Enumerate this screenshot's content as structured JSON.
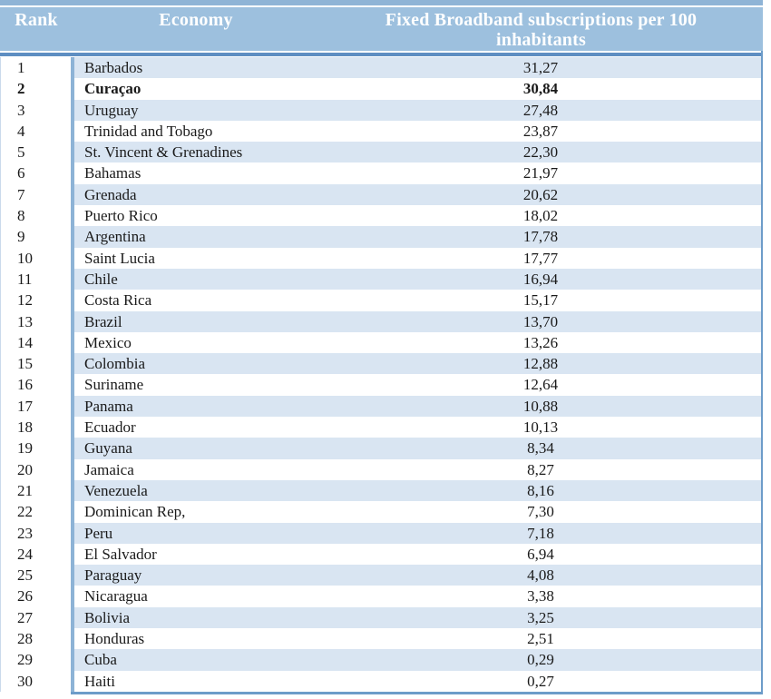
{
  "table": {
    "headers": {
      "rank": "Rank",
      "economy": "Economy",
      "value": "Fixed Broadband subscriptions per 100 inhabitants",
      "value_line1": "Fixed Broadband subscriptions per 100",
      "value_line2": "inhabitants"
    },
    "rows": [
      {
        "rank": "1",
        "economy": "Barbados",
        "value": "31,27",
        "bold": false
      },
      {
        "rank": "2",
        "economy": "Curaçao",
        "value": "30,84",
        "bold": true
      },
      {
        "rank": "3",
        "economy": "Uruguay",
        "value": "27,48",
        "bold": false
      },
      {
        "rank": "4",
        "economy": "Trinidad and Tobago",
        "value": "23,87",
        "bold": false
      },
      {
        "rank": "5",
        "economy": "St. Vincent & Grenadines",
        "value": "22,30",
        "bold": false
      },
      {
        "rank": "6",
        "economy": "Bahamas",
        "value": "21,97",
        "bold": false
      },
      {
        "rank": "7",
        "economy": "Grenada",
        "value": "20,62",
        "bold": false
      },
      {
        "rank": "8",
        "economy": "Puerto Rico",
        "value": "18,02",
        "bold": false
      },
      {
        "rank": "9",
        "economy": "Argentina",
        "value": "17,78",
        "bold": false
      },
      {
        "rank": "10",
        "economy": "Saint Lucia",
        "value": "17,77",
        "bold": false
      },
      {
        "rank": "11",
        "economy": "Chile",
        "value": "16,94",
        "bold": false
      },
      {
        "rank": "12",
        "economy": "Costa Rica",
        "value": "15,17",
        "bold": false
      },
      {
        "rank": "13",
        "economy": "Brazil",
        "value": "13,70",
        "bold": false
      },
      {
        "rank": "14",
        "economy": "Mexico",
        "value": "13,26",
        "bold": false
      },
      {
        "rank": "15",
        "economy": "Colombia",
        "value": "12,88",
        "bold": false
      },
      {
        "rank": "16",
        "economy": "Suriname",
        "value": "12,64",
        "bold": false
      },
      {
        "rank": "17",
        "economy": "Panama",
        "value": "10,88",
        "bold": false
      },
      {
        "rank": "18",
        "economy": "Ecuador",
        "value": "10,13",
        "bold": false
      },
      {
        "rank": "19",
        "economy": "Guyana",
        "value": "8,34",
        "bold": false
      },
      {
        "rank": "20",
        "economy": "Jamaica",
        "value": "8,27",
        "bold": false
      },
      {
        "rank": "21",
        "economy": "Venezuela",
        "value": "8,16",
        "bold": false
      },
      {
        "rank": "22",
        "economy": "Dominican Rep,",
        "value": "7,30",
        "bold": false
      },
      {
        "rank": "23",
        "economy": "Peru",
        "value": "7,18",
        "bold": false
      },
      {
        "rank": "24",
        "economy": "El Salvador",
        "value": "6,94",
        "bold": false
      },
      {
        "rank": "25",
        "economy": "Paraguay",
        "value": "4,08",
        "bold": false
      },
      {
        "rank": "26",
        "economy": "Nicaragua",
        "value": "3,38",
        "bold": false
      },
      {
        "rank": "27",
        "economy": "Bolivia",
        "value": "3,25",
        "bold": false
      },
      {
        "rank": "28",
        "economy": "Honduras",
        "value": "2,51",
        "bold": false
      },
      {
        "rank": "29",
        "economy": "Cuba",
        "value": "0,29",
        "bold": false
      },
      {
        "rank": "30",
        "economy": "Haiti",
        "value": "0,27",
        "bold": false
      }
    ]
  },
  "colors": {
    "top_strip": "#8FB4D6",
    "header_bg": "#9DC0DE",
    "header_text": "#FFFFFF",
    "header_underline": "#5E8EC2",
    "row_stripe": "#D9E5F2",
    "row_plain": "#FFFFFF",
    "column_separator": "#8DB3D6",
    "outer_border": "#6D9CC9",
    "body_text": "#1A1A1A"
  },
  "chart_data": {
    "type": "table",
    "title": "",
    "columns": [
      "Rank",
      "Economy",
      "Fixed Broadband subscriptions per 100 inhabitants"
    ],
    "rows": [
      [
        1,
        "Barbados",
        31.27
      ],
      [
        2,
        "Curaçao",
        30.84
      ],
      [
        3,
        "Uruguay",
        27.48
      ],
      [
        4,
        "Trinidad and Tobago",
        23.87
      ],
      [
        5,
        "St. Vincent & Grenadines",
        22.3
      ],
      [
        6,
        "Bahamas",
        21.97
      ],
      [
        7,
        "Grenada",
        20.62
      ],
      [
        8,
        "Puerto Rico",
        18.02
      ],
      [
        9,
        "Argentina",
        17.78
      ],
      [
        10,
        "Saint Lucia",
        17.77
      ],
      [
        11,
        "Chile",
        16.94
      ],
      [
        12,
        "Costa Rica",
        15.17
      ],
      [
        13,
        "Brazil",
        13.7
      ],
      [
        14,
        "Mexico",
        13.26
      ],
      [
        15,
        "Colombia",
        12.88
      ],
      [
        16,
        "Suriname",
        12.64
      ],
      [
        17,
        "Panama",
        10.88
      ],
      [
        18,
        "Ecuador",
        10.13
      ],
      [
        19,
        "Guyana",
        8.34
      ],
      [
        20,
        "Jamaica",
        8.27
      ],
      [
        21,
        "Venezuela",
        8.16
      ],
      [
        22,
        "Dominican Rep,",
        7.3
      ],
      [
        23,
        "Peru",
        7.18
      ],
      [
        24,
        "El Salvador",
        6.94
      ],
      [
        25,
        "Paraguay",
        4.08
      ],
      [
        26,
        "Nicaragua",
        3.38
      ],
      [
        27,
        "Bolivia",
        3.25
      ],
      [
        28,
        "Honduras",
        2.51
      ],
      [
        29,
        "Cuba",
        0.29
      ],
      [
        30,
        "Haiti",
        0.27
      ]
    ],
    "notes": "Decimal comma formatting as displayed; row 2 (Curaçao) rendered bold; odd rows shaded light blue."
  }
}
